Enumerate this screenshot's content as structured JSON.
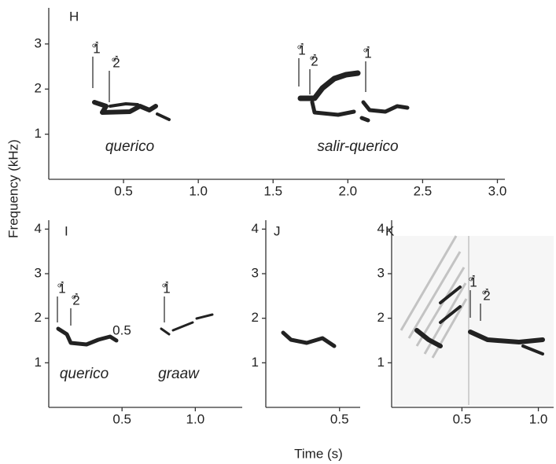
{
  "y_axis_label": "Frequency (kHz)",
  "x_axis_label": "Time (s)",
  "male_symbol": "♂",
  "panels": [
    {
      "letter": "H",
      "xlim": [
        0,
        3.05
      ],
      "ylim": [
        0,
        3.8
      ],
      "xticks": [
        0.5,
        {
          "value": 1,
          "label": "1.0"
        },
        1.5,
        {
          "value": 2,
          "label": "2.0"
        },
        2.5,
        {
          "value": 3,
          "label": "3.0"
        }
      ],
      "yticks": [
        1,
        2,
        3
      ],
      "annotations": [
        "querico",
        "salir-querico"
      ],
      "markers": [
        "1",
        "2",
        "1",
        "2",
        "1"
      ]
    },
    {
      "letter": "I",
      "xlim": [
        0,
        1.32
      ],
      "ylim": [
        0,
        4.2
      ],
      "xticks": [
        0.5,
        {
          "value": 1,
          "label": "1.0"
        }
      ],
      "yticks": [
        1,
        2,
        3,
        4
      ],
      "annotations": [
        "querico",
        "graaw",
        "0.5"
      ],
      "markers": [
        "1",
        "2",
        "1"
      ]
    },
    {
      "letter": "J",
      "xlim": [
        0,
        0.64
      ],
      "ylim": [
        0,
        4.2
      ],
      "xticks": [
        0.5
      ],
      "yticks": [
        1,
        2,
        3,
        4
      ],
      "annotations": [],
      "markers": []
    },
    {
      "letter": "K",
      "xlim": [
        0.04,
        1.1
      ],
      "ylim": [
        0,
        4.2
      ],
      "xticks": [
        0.5,
        {
          "value": 1,
          "label": "1.0"
        }
      ],
      "yticks": [
        1,
        2,
        3,
        4
      ],
      "annotations": [],
      "markers": [
        "1",
        "2"
      ]
    }
  ]
}
